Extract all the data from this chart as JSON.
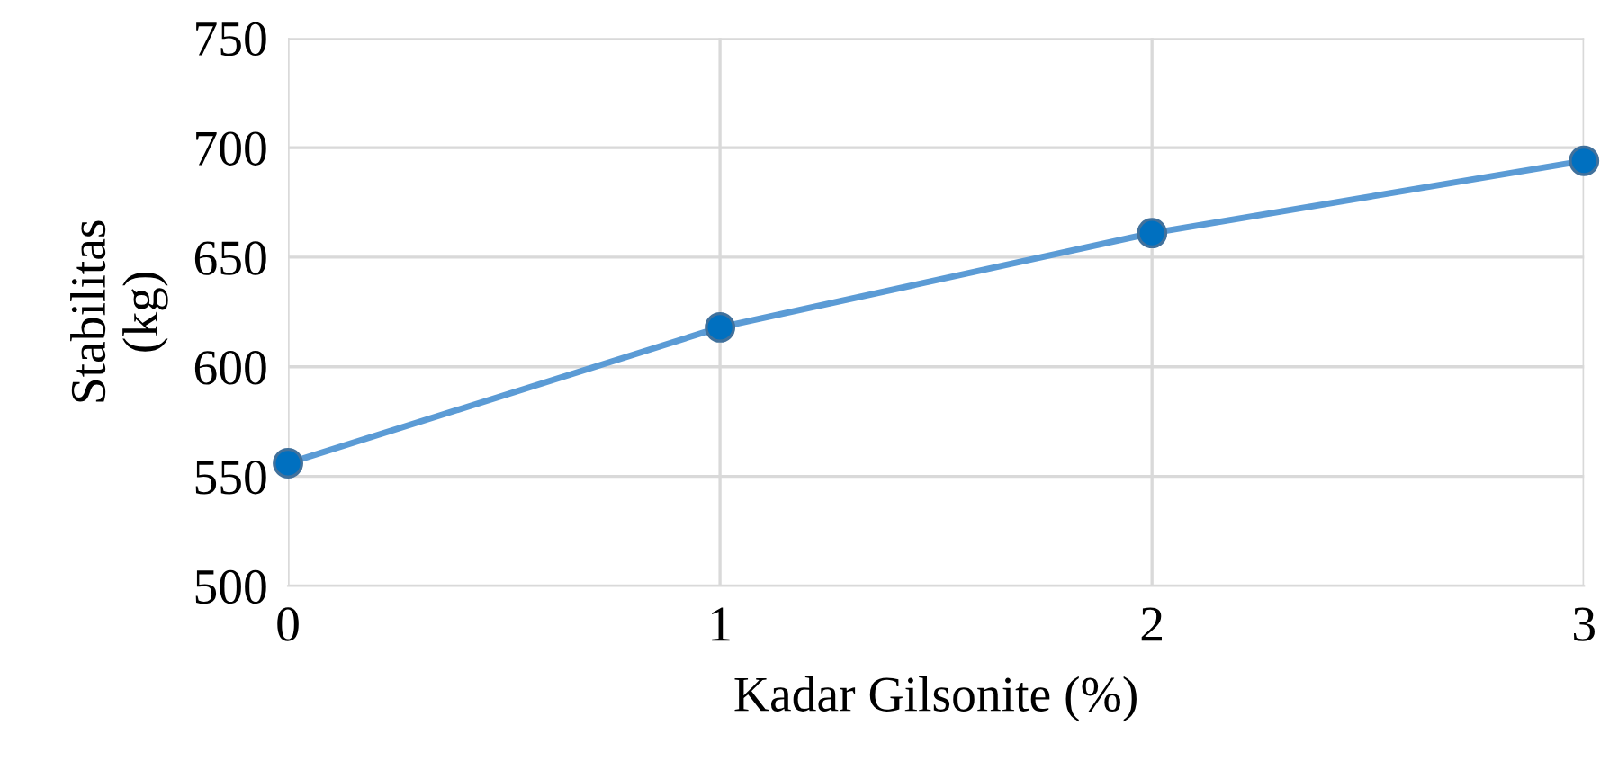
{
  "chart_data": {
    "type": "line",
    "xlabel": "Kadar Gilsonite (%)",
    "ylabel": "Stabilitas\n(kg)",
    "x": [
      0,
      1,
      2,
      3
    ],
    "series": [
      {
        "color": "#5b9bd5",
        "values": [
          556,
          618,
          661,
          694
        ]
      }
    ],
    "xlim": [
      0,
      3
    ],
    "xticks": [
      0,
      1,
      2,
      3
    ],
    "ylim": [
      500,
      750
    ],
    "yticks": [
      500,
      550,
      600,
      650,
      700,
      750
    ],
    "grid": true,
    "marker": "circle",
    "line_style": "solid",
    "legend": false
  }
}
